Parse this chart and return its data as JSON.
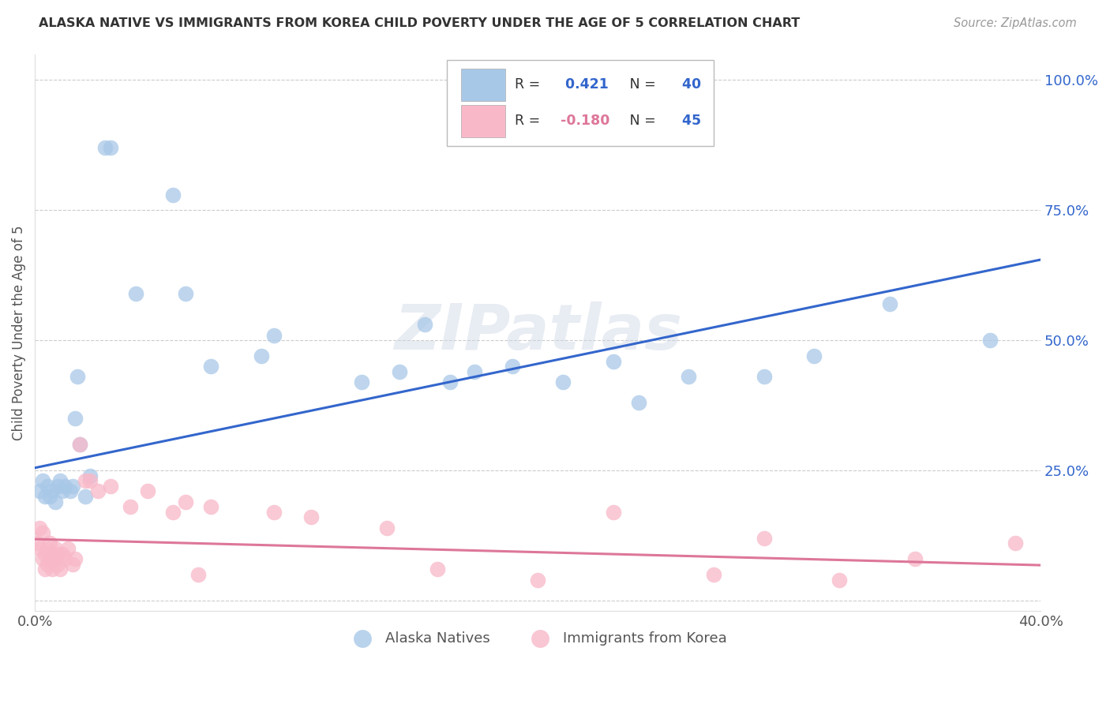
{
  "title": "ALASKA NATIVE VS IMMIGRANTS FROM KOREA CHILD POVERTY UNDER THE AGE OF 5 CORRELATION CHART",
  "source": "Source: ZipAtlas.com",
  "ylabel": "Child Poverty Under the Age of 5",
  "ytick_labels": [
    "",
    "25.0%",
    "50.0%",
    "75.0%",
    "100.0%"
  ],
  "ytick_positions": [
    0.0,
    0.25,
    0.5,
    0.75,
    1.0
  ],
  "xlim": [
    0.0,
    0.4
  ],
  "ylim": [
    -0.02,
    1.05
  ],
  "R_blue": 0.421,
  "N_blue": 40,
  "R_pink": -0.18,
  "N_pink": 45,
  "blue_scatter_color": "#a8c8e8",
  "pink_scatter_color": "#f8b8c8",
  "blue_line_color": "#3366cc",
  "pink_line_color": "#dd7799",
  "title_color": "#333333",
  "source_color": "#999999",
  "watermark": "ZIPatlas",
  "grid_color": "#cccccc",
  "blue_line_x0": 0.0,
  "blue_line_y0": 0.255,
  "blue_line_x1": 0.4,
  "blue_line_y1": 0.655,
  "pink_line_x0": 0.0,
  "pink_line_y0": 0.118,
  "pink_line_x1": 0.4,
  "pink_line_y1": 0.068,
  "alaska_natives_x": [
    0.002,
    0.003,
    0.004,
    0.005,
    0.006,
    0.007,
    0.008,
    0.009,
    0.01,
    0.011,
    0.012,
    0.014,
    0.015,
    0.016,
    0.017,
    0.018,
    0.02,
    0.022,
    0.028,
    0.03,
    0.04,
    0.055,
    0.06,
    0.07,
    0.09,
    0.095,
    0.13,
    0.145,
    0.155,
    0.165,
    0.175,
    0.19,
    0.21,
    0.23,
    0.24,
    0.26,
    0.29,
    0.31,
    0.34,
    0.38
  ],
  "alaska_natives_y": [
    0.21,
    0.23,
    0.2,
    0.22,
    0.2,
    0.21,
    0.19,
    0.22,
    0.23,
    0.21,
    0.22,
    0.21,
    0.22,
    0.35,
    0.43,
    0.3,
    0.2,
    0.24,
    0.87,
    0.87,
    0.59,
    0.78,
    0.59,
    0.45,
    0.47,
    0.51,
    0.42,
    0.44,
    0.53,
    0.42,
    0.44,
    0.45,
    0.42,
    0.46,
    0.38,
    0.43,
    0.43,
    0.47,
    0.57,
    0.5
  ],
  "korea_x": [
    0.001,
    0.002,
    0.002,
    0.003,
    0.003,
    0.004,
    0.004,
    0.005,
    0.005,
    0.006,
    0.006,
    0.007,
    0.007,
    0.008,
    0.008,
    0.009,
    0.009,
    0.01,
    0.011,
    0.012,
    0.013,
    0.015,
    0.016,
    0.018,
    0.02,
    0.022,
    0.025,
    0.03,
    0.038,
    0.045,
    0.055,
    0.06,
    0.065,
    0.07,
    0.095,
    0.11,
    0.14,
    0.16,
    0.2,
    0.23,
    0.27,
    0.29,
    0.32,
    0.35,
    0.39
  ],
  "korea_y": [
    0.11,
    0.14,
    0.1,
    0.08,
    0.13,
    0.09,
    0.06,
    0.1,
    0.07,
    0.11,
    0.08,
    0.09,
    0.06,
    0.08,
    0.1,
    0.07,
    0.09,
    0.06,
    0.09,
    0.08,
    0.1,
    0.07,
    0.08,
    0.3,
    0.23,
    0.23,
    0.21,
    0.22,
    0.18,
    0.21,
    0.17,
    0.19,
    0.05,
    0.18,
    0.17,
    0.16,
    0.14,
    0.06,
    0.04,
    0.17,
    0.05,
    0.12,
    0.04,
    0.08,
    0.11
  ]
}
